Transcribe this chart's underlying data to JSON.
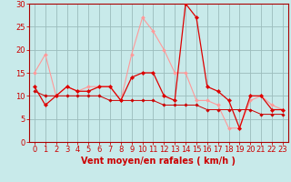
{
  "xlabel": "Vent moyen/en rafales ( km/h )",
  "xlabel_color": "#cc0000",
  "bg_color": "#c8eaea",
  "grid_color": "#9bbcbc",
  "xlim": [
    -0.5,
    23.5
  ],
  "ylim": [
    0,
    30
  ],
  "yticks": [
    0,
    5,
    10,
    15,
    20,
    25,
    30
  ],
  "xticks": [
    0,
    1,
    2,
    3,
    4,
    5,
    6,
    7,
    8,
    9,
    10,
    11,
    12,
    13,
    14,
    15,
    16,
    17,
    18,
    19,
    20,
    21,
    22,
    23
  ],
  "line_moyen_x": [
    0,
    1,
    2,
    3,
    4,
    5,
    6,
    7,
    8,
    9,
    10,
    11,
    12,
    13,
    14,
    15,
    16,
    17,
    18,
    19,
    20,
    21,
    22,
    23
  ],
  "line_moyen_y": [
    12,
    8,
    10,
    12,
    11,
    11,
    12,
    12,
    9,
    14,
    15,
    15,
    10,
    9,
    30,
    27,
    12,
    11,
    9,
    3,
    10,
    10,
    7,
    7
  ],
  "line_moyen_color": "#dd0000",
  "line_rafales_x": [
    0,
    1,
    2,
    3,
    4,
    5,
    6,
    7,
    8,
    9,
    10,
    11,
    12,
    13,
    14,
    15,
    16,
    17,
    18,
    19,
    20,
    21,
    22,
    23
  ],
  "line_rafales_y": [
    15,
    19,
    10,
    12,
    11,
    12,
    12,
    12,
    9,
    19,
    27,
    24,
    20,
    15,
    15,
    9,
    9,
    8,
    3,
    3,
    9,
    10,
    8,
    7
  ],
  "line_rafales_color": "#ff9999",
  "line_trend_x": [
    0,
    1,
    2,
    3,
    4,
    5,
    6,
    7,
    8,
    9,
    10,
    11,
    12,
    13,
    14,
    15,
    16,
    17,
    18,
    19,
    20,
    21,
    22,
    23
  ],
  "line_trend_y": [
    11,
    10,
    10,
    10,
    10,
    10,
    10,
    9,
    9,
    9,
    9,
    9,
    8,
    8,
    8,
    8,
    7,
    7,
    7,
    7,
    7,
    6,
    6,
    6
  ],
  "line_trend_color": "#cc0000",
  "tick_fontsize": 6,
  "label_fontsize": 7,
  "label_fontweight": "bold"
}
